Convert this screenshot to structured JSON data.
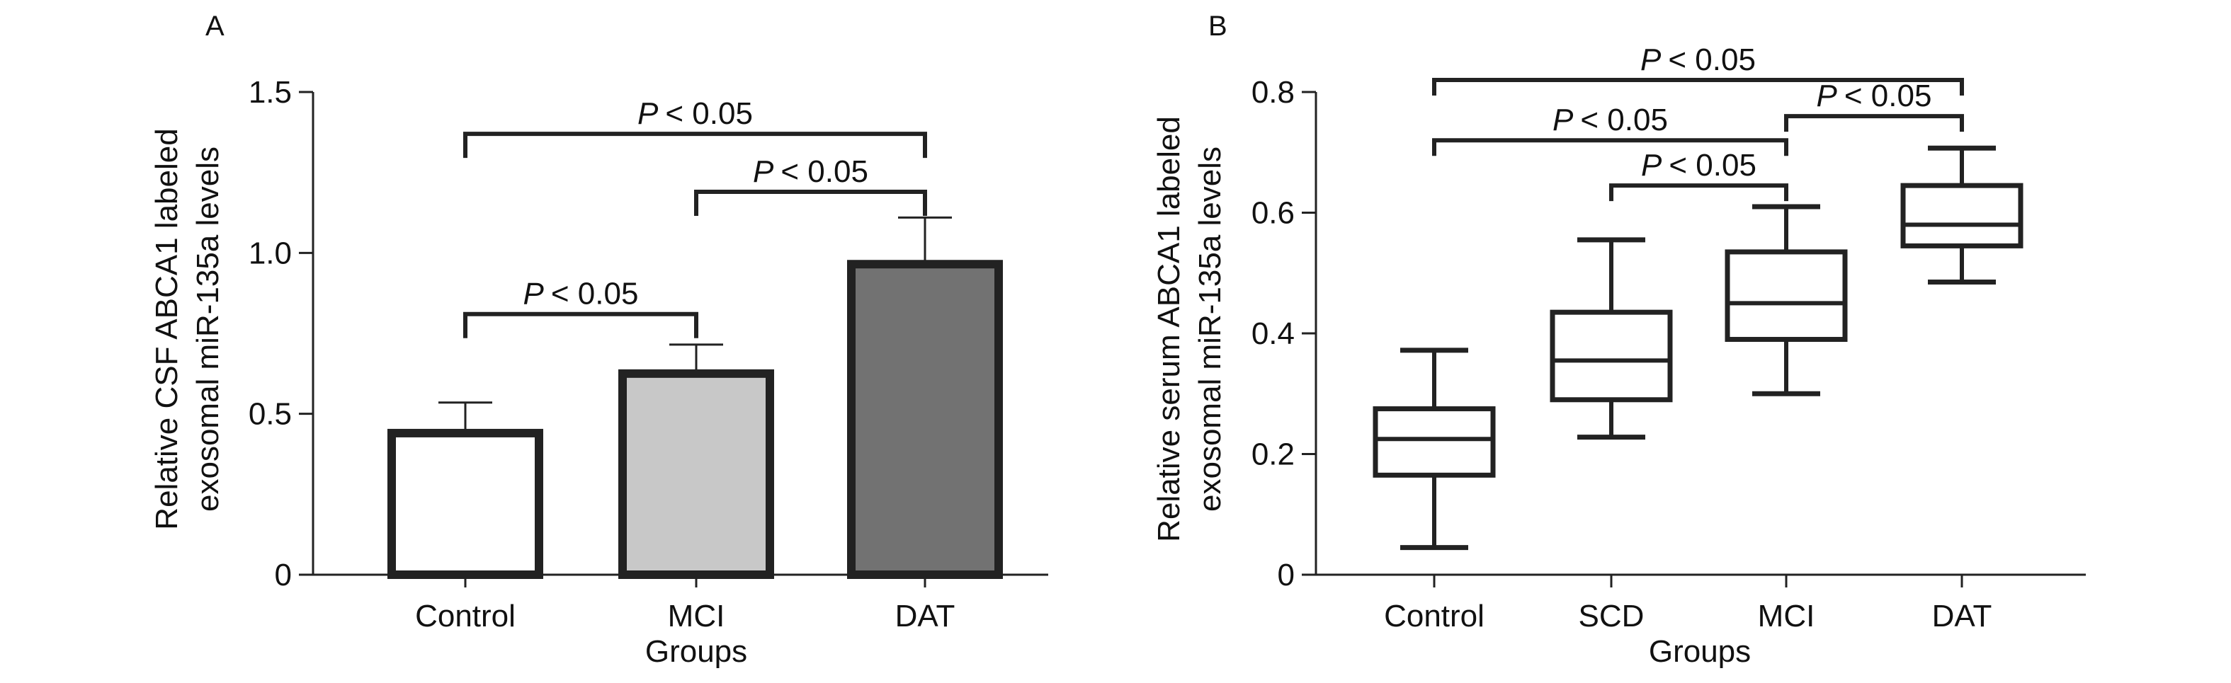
{
  "chart_data": [
    {
      "panel_label": "A",
      "type": "bar",
      "categories": [
        "Control",
        "MCI",
        "DAT"
      ],
      "values": [
        0.44,
        0.625,
        0.965
      ],
      "error_upper": [
        0.535,
        0.715,
        1.11
      ],
      "bar_colors": [
        "#ffffff",
        "#c8c8c8",
        "#727272"
      ],
      "xlabel": "Groups",
      "ylabel_lines": [
        "Relative CSF ABCA1 labeled",
        "exosomal miR-135a levels"
      ],
      "ylim": [
        0,
        1.5
      ],
      "yticks": [
        0,
        0.5,
        1.0,
        1.5
      ],
      "ytick_labels": [
        "0",
        "0.5",
        "1.0",
        "1.5"
      ],
      "significance": [
        {
          "from": 0,
          "to": 2,
          "y": 1.37,
          "label": "< 0.05"
        },
        {
          "from": 1,
          "to": 2,
          "y": 1.19,
          "label": "< 0.05"
        },
        {
          "from": 0,
          "to": 1,
          "y": 0.81,
          "label": "< 0.05"
        }
      ],
      "sig_italic": "P"
    },
    {
      "panel_label": "B",
      "type": "box",
      "categories": [
        "Control",
        "SCD",
        "MCI",
        "DAT"
      ],
      "boxes": [
        {
          "min": 0.045,
          "q1": 0.165,
          "median": 0.225,
          "q3": 0.275,
          "max": 0.372
        },
        {
          "min": 0.228,
          "q1": 0.29,
          "median": 0.355,
          "q3": 0.435,
          "max": 0.555
        },
        {
          "min": 0.3,
          "q1": 0.39,
          "median": 0.45,
          "q3": 0.535,
          "max": 0.61
        },
        {
          "min": 0.485,
          "q1": 0.545,
          "median": 0.58,
          "q3": 0.645,
          "max": 0.707
        }
      ],
      "xlabel": "Groups",
      "ylabel_lines": [
        "Relative serum ABCA1 labeled",
        "exosomal miR-135a levels"
      ],
      "ylim": [
        0,
        0.8
      ],
      "yticks": [
        0,
        0.2,
        0.4,
        0.6,
        0.8
      ],
      "ytick_labels": [
        "0",
        "0.2",
        "0.4",
        "0.6",
        "0.8"
      ],
      "significance": [
        {
          "from": 0,
          "to": 3,
          "y": 0.82,
          "label": "< 0.05"
        },
        {
          "from": 0,
          "to": 2,
          "y": 0.72,
          "label": "< 0.05"
        },
        {
          "from": 2,
          "to": 3,
          "y": 0.76,
          "label": "< 0.05"
        },
        {
          "from": 1,
          "to": 2,
          "y": 0.645,
          "label": "< 0.05"
        }
      ],
      "sig_italic": "P"
    }
  ]
}
